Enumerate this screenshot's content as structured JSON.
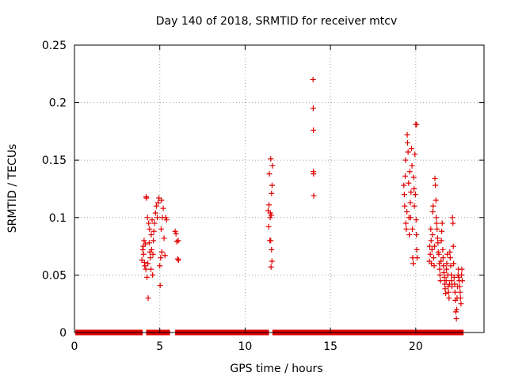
{
  "chart_data": {
    "type": "scatter",
    "title": "Day 140 of 2018, SRMTID for receiver mtcv",
    "xlabel": "GPS time / hours",
    "ylabel": "SRMTID / TECUs",
    "xlim": [
      0,
      24
    ],
    "ylim": [
      0,
      0.25
    ],
    "xticks": [
      0,
      5,
      10,
      15,
      20
    ],
    "xtick_labels": [
      "0",
      "5",
      "10",
      "15",
      "20"
    ],
    "yticks": [
      0,
      0.05,
      0.1,
      0.15,
      0.2,
      0.25
    ],
    "ytick_labels": [
      "0",
      "0.05",
      "0.1",
      "0.15",
      "0.2",
      "0.25"
    ],
    "grid": true,
    "marker": "+",
    "series": [
      {
        "name": "SRMTID",
        "color": "#e00000",
        "zero_line_segments": [
          [
            0.05,
            4.0
          ],
          [
            4.2,
            5.6
          ],
          [
            5.9,
            11.4
          ],
          [
            11.6,
            22.8
          ]
        ],
        "points": [
          [
            3.95,
            0.063
          ],
          [
            4.0,
            0.072
          ],
          [
            4.03,
            0.075
          ],
          [
            4.05,
            0.068
          ],
          [
            4.08,
            0.08
          ],
          [
            4.1,
            0.061
          ],
          [
            4.12,
            0.058
          ],
          [
            4.15,
            0.077
          ],
          [
            4.18,
            0.055
          ],
          [
            4.2,
            0.118
          ],
          [
            4.22,
            0.117
          ],
          [
            4.25,
            0.048
          ],
          [
            4.28,
            0.1
          ],
          [
            4.3,
            0.06
          ],
          [
            4.32,
            0.03
          ],
          [
            4.35,
            0.095
          ],
          [
            4.38,
            0.078
          ],
          [
            4.4,
            0.09
          ],
          [
            4.42,
            0.07
          ],
          [
            4.45,
            0.065
          ],
          [
            4.48,
            0.055
          ],
          [
            4.5,
            0.085
          ],
          [
            4.52,
            0.072
          ],
          [
            4.55,
            0.098
          ],
          [
            4.58,
            0.05
          ],
          [
            4.6,
            0.068
          ],
          [
            4.62,
            0.08
          ],
          [
            4.65,
            0.088
          ],
          [
            4.7,
            0.095
          ],
          [
            4.75,
            0.104
          ],
          [
            4.8,
            0.11
          ],
          [
            4.85,
            0.1
          ],
          [
            4.9,
            0.113
          ],
          [
            4.95,
            0.117
          ],
          [
            5.0,
            0.058
          ],
          [
            5.02,
            0.041
          ],
          [
            5.05,
            0.065
          ],
          [
            5.08,
            0.09
          ],
          [
            5.1,
            0.115
          ],
          [
            5.12,
            0.07
          ],
          [
            5.15,
            0.1
          ],
          [
            5.2,
            0.108
          ],
          [
            5.25,
            0.082
          ],
          [
            5.3,
            0.067
          ],
          [
            5.35,
            0.1
          ],
          [
            5.4,
            0.098
          ],
          [
            5.9,
            0.088
          ],
          [
            5.95,
            0.086
          ],
          [
            6.0,
            0.079
          ],
          [
            6.05,
            0.064
          ],
          [
            6.08,
            0.08
          ],
          [
            6.1,
            0.063
          ],
          [
            11.35,
            0.106
          ],
          [
            11.38,
            0.092
          ],
          [
            11.4,
            0.111
          ],
          [
            11.42,
            0.138
          ],
          [
            11.45,
            0.08
          ],
          [
            11.47,
            0.1
          ],
          [
            11.48,
            0.104
          ],
          [
            11.5,
            0.08
          ],
          [
            11.5,
            0.151
          ],
          [
            11.52,
            0.057
          ],
          [
            11.53,
            0.102
          ],
          [
            11.55,
            0.072
          ],
          [
            11.55,
            0.121
          ],
          [
            11.57,
            0.062
          ],
          [
            11.58,
            0.128
          ],
          [
            11.6,
            0.145
          ],
          [
            13.98,
            0.22
          ],
          [
            13.99,
            0.195
          ],
          [
            14.0,
            0.176
          ],
          [
            14.0,
            0.14
          ],
          [
            14.01,
            0.138
          ],
          [
            14.02,
            0.119
          ],
          [
            19.3,
            0.128
          ],
          [
            19.33,
            0.12
          ],
          [
            19.35,
            0.11
          ],
          [
            19.38,
            0.136
          ],
          [
            19.4,
            0.15
          ],
          [
            19.42,
            0.095
          ],
          [
            19.45,
            0.09
          ],
          [
            19.48,
            0.105
          ],
          [
            19.5,
            0.172
          ],
          [
            19.52,
            0.165
          ],
          [
            19.55,
            0.157
          ],
          [
            19.58,
            0.13
          ],
          [
            19.6,
            0.1
          ],
          [
            19.62,
            0.085
          ],
          [
            19.65,
            0.14
          ],
          [
            19.68,
            0.113
          ],
          [
            19.7,
            0.1
          ],
          [
            19.72,
            0.122
          ],
          [
            19.75,
            0.16
          ],
          [
            19.78,
            0.145
          ],
          [
            19.8,
            0.09
          ],
          [
            19.82,
            0.065
          ],
          [
            19.85,
            0.06
          ],
          [
            19.88,
            0.135
          ],
          [
            19.9,
            0.125
          ],
          [
            19.92,
            0.11
          ],
          [
            19.95,
            0.155
          ],
          [
            19.98,
            0.12
          ],
          [
            20.0,
            0.181
          ],
          [
            20.05,
            0.181
          ],
          [
            20.02,
            0.098
          ],
          [
            20.04,
            0.085
          ],
          [
            20.06,
            0.072
          ],
          [
            20.08,
            0.065
          ],
          [
            20.8,
            0.062
          ],
          [
            20.82,
            0.075
          ],
          [
            20.85,
            0.068
          ],
          [
            20.88,
            0.09
          ],
          [
            20.9,
            0.08
          ],
          [
            20.92,
            0.06
          ],
          [
            20.95,
            0.072
          ],
          [
            20.98,
            0.085
          ],
          [
            21.0,
            0.105
          ],
          [
            21.02,
            0.11
          ],
          [
            21.05,
            0.065
          ],
          [
            21.08,
            0.058
          ],
          [
            21.1,
            0.075
          ],
          [
            21.12,
            0.134
          ],
          [
            21.15,
            0.128
          ],
          [
            21.18,
            0.115
          ],
          [
            21.2,
            0.1
          ],
          [
            21.22,
            0.095
          ],
          [
            21.25,
            0.09
          ],
          [
            21.28,
            0.082
          ],
          [
            21.3,
            0.078
          ],
          [
            21.32,
            0.07
          ],
          [
            21.35,
            0.068
          ],
          [
            21.38,
            0.06
          ],
          [
            21.4,
            0.055
          ],
          [
            21.42,
            0.05
          ],
          [
            21.45,
            0.045
          ],
          [
            21.48,
            0.062
          ],
          [
            21.5,
            0.08
          ],
          [
            21.52,
            0.088
          ],
          [
            21.55,
            0.095
          ],
          [
            21.58,
            0.072
          ],
          [
            21.6,
            0.065
          ],
          [
            21.62,
            0.058
          ],
          [
            21.65,
            0.052
          ],
          [
            21.68,
            0.048
          ],
          [
            21.7,
            0.042
          ],
          [
            21.72,
            0.038
          ],
          [
            21.75,
            0.034
          ],
          [
            21.78,
            0.045
          ],
          [
            21.8,
            0.055
          ],
          [
            21.82,
            0.06
          ],
          [
            21.85,
            0.068
          ],
          [
            21.88,
            0.05
          ],
          [
            21.9,
            0.04
          ],
          [
            21.92,
            0.035
          ],
          [
            21.95,
            0.03
          ],
          [
            21.98,
            0.042
          ],
          [
            22.0,
            0.07
          ],
          [
            22.02,
            0.065
          ],
          [
            22.05,
            0.058
          ],
          [
            22.08,
            0.05
          ],
          [
            22.1,
            0.045
          ],
          [
            22.12,
            0.04
          ],
          [
            22.15,
            0.1
          ],
          [
            22.18,
            0.095
          ],
          [
            22.2,
            0.075
          ],
          [
            22.22,
            0.06
          ],
          [
            22.25,
            0.048
          ],
          [
            22.28,
            0.042
          ],
          [
            22.3,
            0.035
          ],
          [
            22.32,
            0.028
          ],
          [
            22.35,
            0.018
          ],
          [
            22.38,
            0.012
          ],
          [
            22.4,
            0.02
          ],
          [
            22.42,
            0.03
          ],
          [
            22.45,
            0.04
          ],
          [
            22.48,
            0.05
          ],
          [
            22.5,
            0.055
          ],
          [
            22.52,
            0.048
          ],
          [
            22.55,
            0.045
          ],
          [
            22.58,
            0.04
          ],
          [
            22.6,
            0.035
          ],
          [
            22.62,
            0.03
          ],
          [
            22.65,
            0.025
          ],
          [
            22.68,
            0.05
          ],
          [
            22.7,
            0.055
          ],
          [
            22.72,
            0.045
          ]
        ]
      }
    ]
  }
}
